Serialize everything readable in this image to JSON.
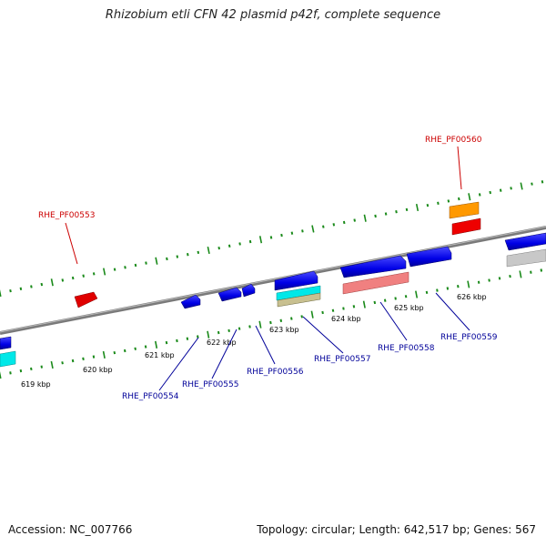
{
  "title": "Rhizobium etli CFN 42 plasmid p42f, complete sequence",
  "footer": {
    "accession": "Accession: NC_007766",
    "summary": "Topology: circular; Length: 642,517 bp; Genes: 567"
  },
  "colors": {
    "backbone": "#808080",
    "tick": "#1a8a1a",
    "forward_label": "#cc0000",
    "reverse_label": "#000099"
  },
  "ruler": [
    "619 kbp",
    "620 kbp",
    "621 kbp",
    "622 kbp",
    "623 kbp",
    "624 kbp",
    "625 kbp",
    "626 kbp"
  ],
  "genes_top": [
    "RHE_PF00553",
    "RHE_PF00560"
  ],
  "genes_bottom": [
    "RHE_PF00554",
    "RHE_PF00555",
    "RHE_PF00556",
    "RHE_PF00557",
    "RHE_PF00558",
    "RHE_PF00559"
  ]
}
